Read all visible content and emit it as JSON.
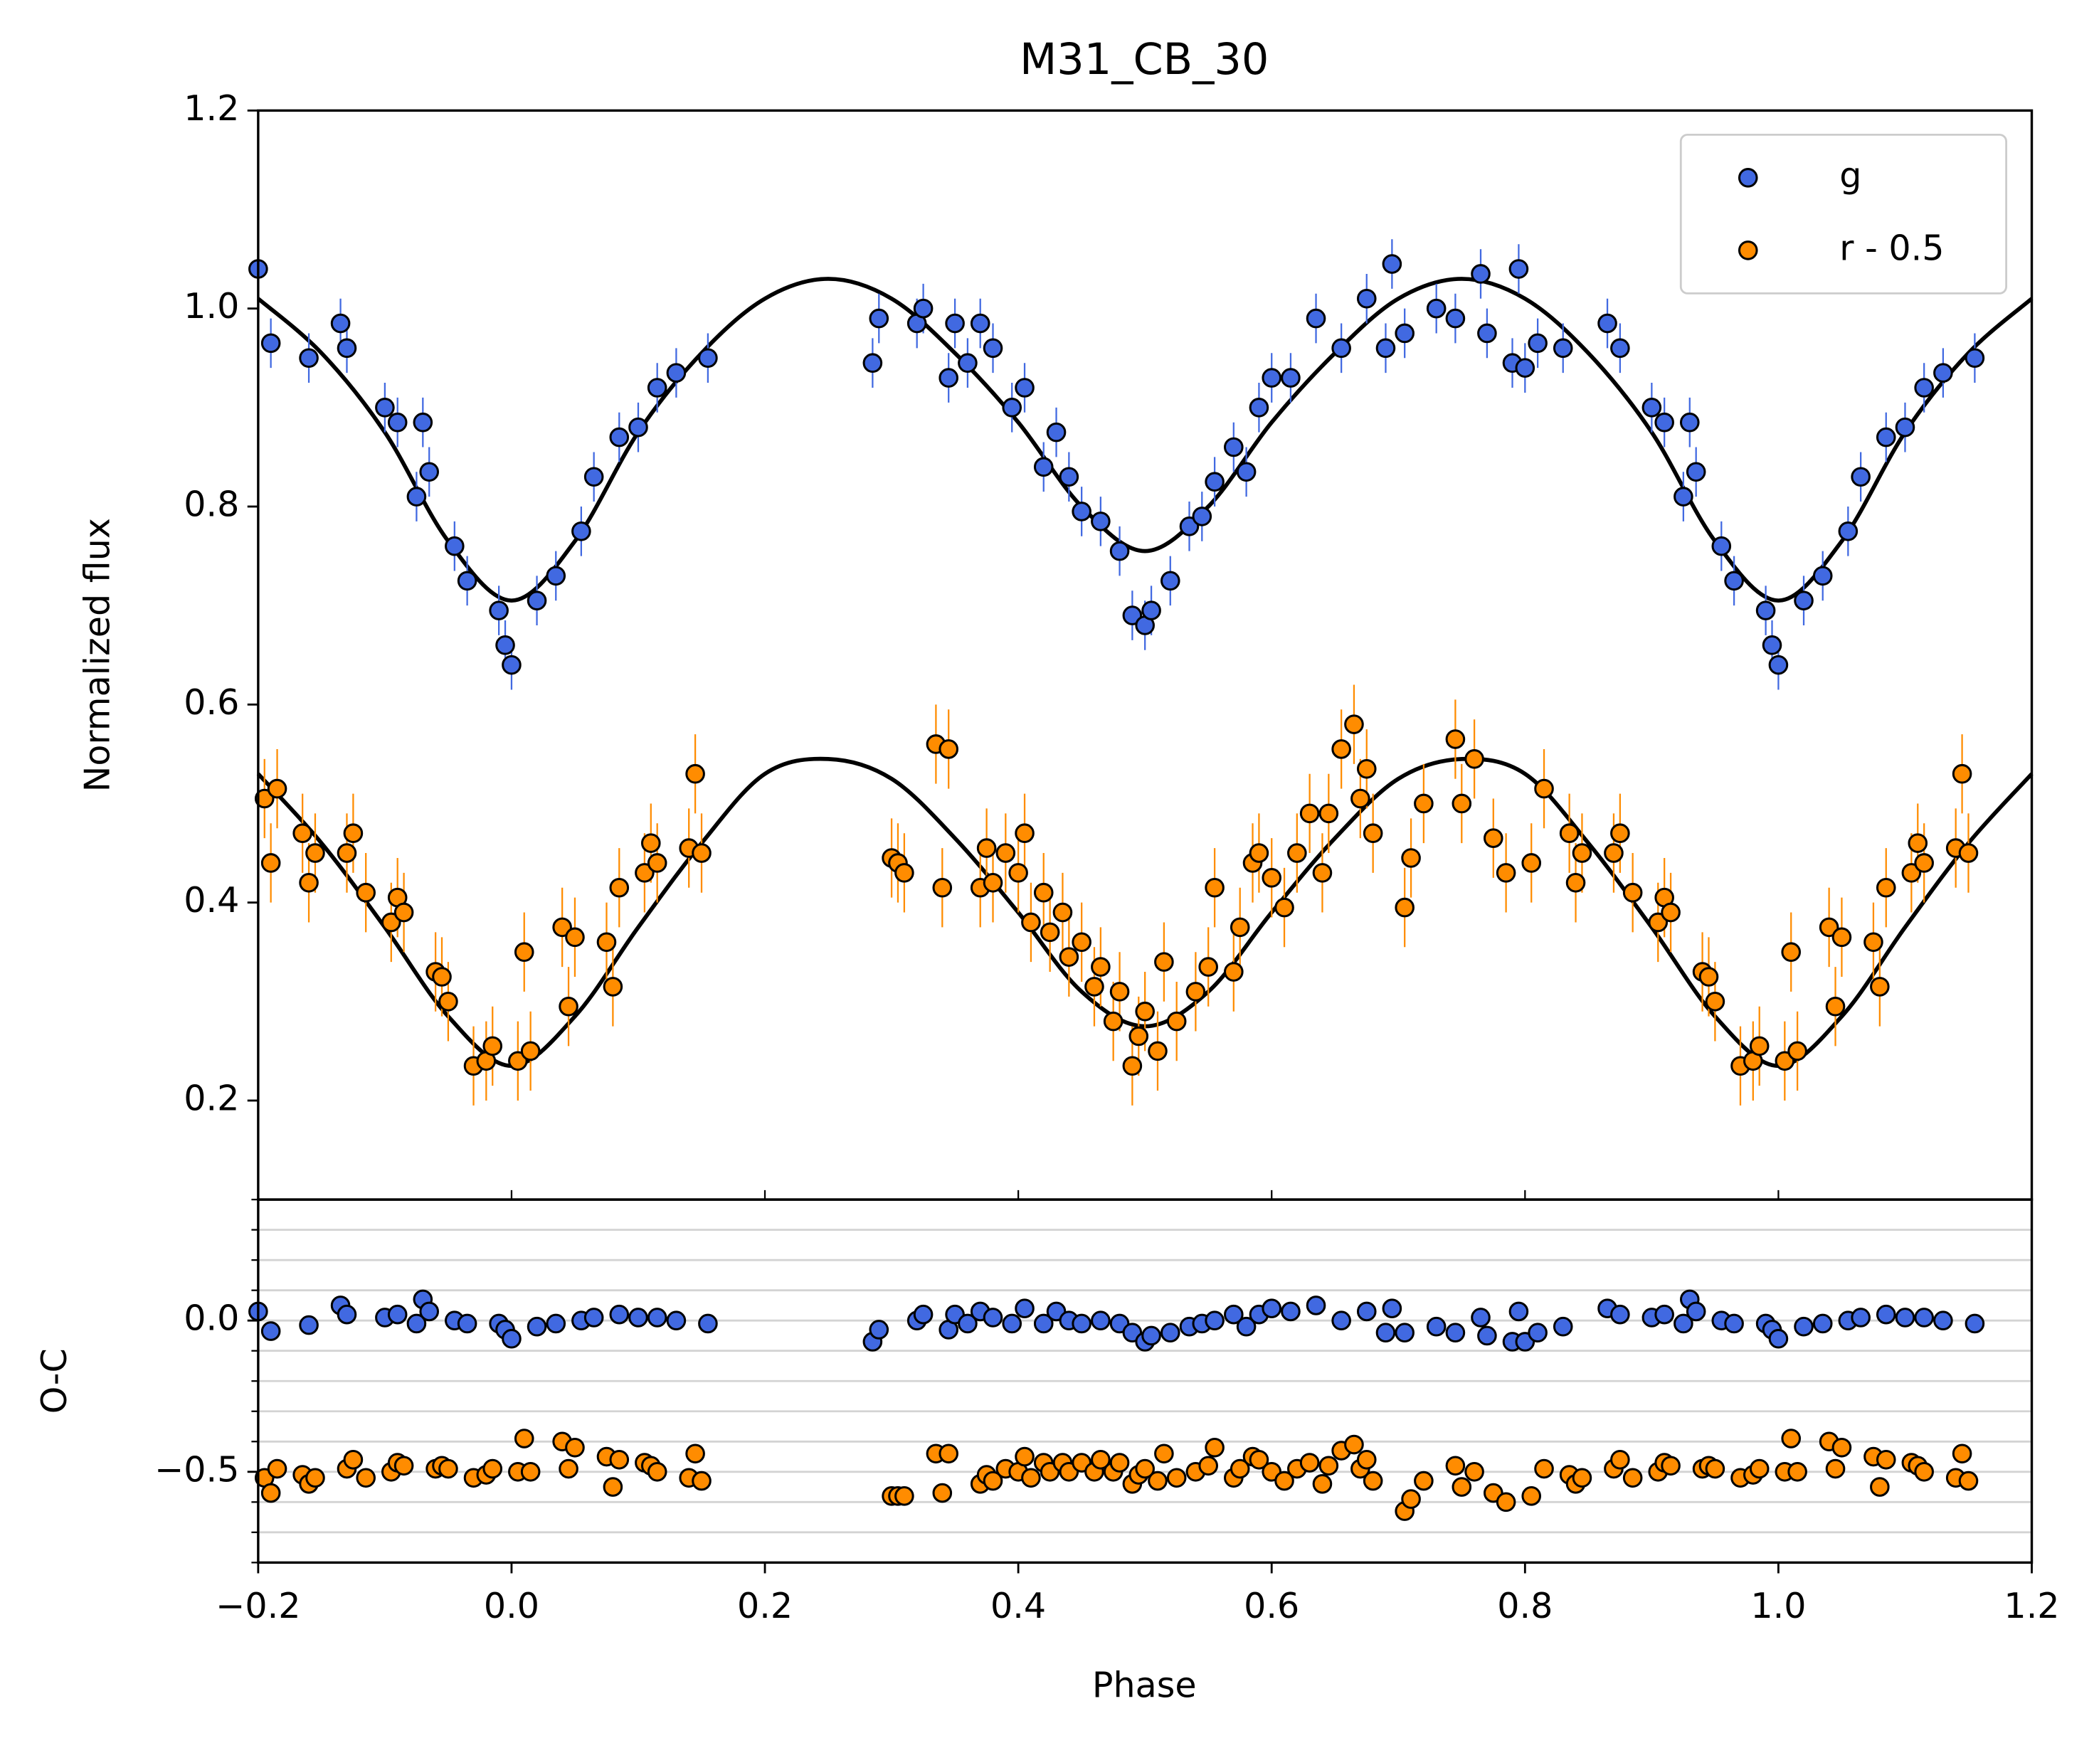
{
  "chart_data": [
    {
      "type": "scatter",
      "title": "M31_CB_30",
      "ylabel": "Normalized flux",
      "xlim": [
        -0.2,
        1.2
      ],
      "ylim": [
        0.1,
        1.2
      ],
      "yticks": [
        0.2,
        0.4,
        0.6,
        0.8,
        {
          "value": 1.0,
          "label": "1.0"
        },
        1.2
      ],
      "legend": "upper right",
      "series": [
        {
          "name": "g",
          "color": "#4169e1",
          "yerr": 0.025,
          "x": [
            -0.2,
            -0.19,
            -0.16,
            -0.135,
            -0.13,
            -0.1,
            -0.09,
            -0.075,
            -0.07,
            -0.065,
            -0.045,
            -0.035,
            -0.01,
            -0.005,
            0.0,
            0.02,
            0.035,
            0.055,
            0.065,
            0.085,
            0.1,
            0.115,
            0.13,
            0.155,
            0.285,
            0.29,
            0.32,
            0.325,
            0.345,
            0.35,
            0.36,
            0.37,
            0.38,
            0.395,
            0.405,
            0.42,
            0.43,
            0.44,
            0.45,
            0.465,
            0.48,
            0.49,
            0.5,
            0.505,
            0.52,
            0.535,
            0.545,
            0.555,
            0.57,
            0.58,
            0.59,
            0.6,
            0.615,
            0.635,
            0.655,
            0.675,
            0.69,
            0.695,
            0.705,
            0.73,
            0.745,
            0.765,
            0.77,
            0.79,
            0.795,
            0.8,
            0.81,
            0.83,
            0.865,
            0.875,
            0.9,
            0.91,
            0.925,
            0.93,
            0.935,
            0.955,
            0.965,
            0.99,
            0.995,
            1.0,
            1.02,
            1.035,
            1.055,
            1.065,
            1.085,
            1.1,
            1.115,
            1.13,
            1.155
          ],
          "values": [
            1.04,
            0.965,
            0.95,
            0.985,
            0.96,
            0.9,
            0.885,
            0.81,
            0.885,
            0.835,
            0.76,
            0.725,
            0.695,
            0.66,
            0.64,
            0.705,
            0.73,
            0.775,
            0.83,
            0.87,
            0.88,
            0.92,
            0.935,
            0.95,
            0.945,
            0.99,
            0.985,
            1.0,
            0.93,
            0.985,
            0.945,
            0.985,
            0.96,
            0.9,
            0.92,
            0.84,
            0.875,
            0.83,
            0.795,
            0.785,
            0.755,
            0.69,
            0.68,
            0.695,
            0.725,
            0.78,
            0.79,
            0.825,
            0.86,
            0.835,
            0.9,
            0.93,
            0.93,
            0.99,
            0.96,
            1.01,
            0.96,
            1.045,
            0.975,
            1.0,
            0.99,
            1.035,
            0.975,
            0.945,
            1.04,
            0.94,
            0.965,
            0.96,
            0.985,
            0.96,
            0.9,
            0.885,
            0.81,
            0.885,
            0.835,
            0.76,
            0.725,
            0.695,
            0.66,
            0.64,
            0.705,
            0.73,
            0.775,
            0.83,
            0.87,
            0.88,
            0.92,
            0.935,
            0.95
          ]
        },
        {
          "name": "r - 0.5",
          "color": "#ff8c00",
          "yerr": 0.04,
          "x": [
            -0.195,
            -0.19,
            -0.185,
            -0.165,
            -0.16,
            -0.155,
            -0.13,
            -0.125,
            -0.115,
            -0.095,
            -0.09,
            -0.085,
            -0.06,
            -0.055,
            -0.05,
            -0.03,
            -0.02,
            -0.015,
            0.005,
            0.01,
            0.015,
            0.04,
            0.045,
            0.05,
            0.075,
            0.08,
            0.085,
            0.105,
            0.11,
            0.115,
            0.14,
            0.145,
            0.15,
            0.3,
            0.305,
            0.31,
            0.335,
            0.34,
            0.345,
            0.37,
            0.375,
            0.38,
            0.39,
            0.4,
            0.405,
            0.41,
            0.42,
            0.425,
            0.435,
            0.44,
            0.45,
            0.46,
            0.465,
            0.475,
            0.48,
            0.49,
            0.495,
            0.5,
            0.51,
            0.515,
            0.525,
            0.54,
            0.55,
            0.555,
            0.57,
            0.575,
            0.585,
            0.59,
            0.6,
            0.61,
            0.62,
            0.63,
            0.64,
            0.645,
            0.655,
            0.665,
            0.67,
            0.675,
            0.68,
            0.705,
            0.71,
            0.72,
            0.745,
            0.75,
            0.76,
            0.775,
            0.785,
            0.805,
            0.815,
            0.835,
            0.84,
            0.845,
            0.87,
            0.875,
            0.885,
            0.905,
            0.91,
            0.915,
            0.94,
            0.945,
            0.95,
            0.97,
            0.98,
            0.985,
            1.005,
            1.01,
            1.015,
            1.04,
            1.045,
            1.05,
            1.075,
            1.08,
            1.085,
            1.105,
            1.11,
            1.115,
            1.14,
            1.145,
            1.15
          ],
          "values": [
            0.505,
            0.44,
            0.515,
            0.47,
            0.42,
            0.45,
            0.45,
            0.47,
            0.41,
            0.38,
            0.405,
            0.39,
            0.33,
            0.325,
            0.3,
            0.235,
            0.24,
            0.255,
            0.24,
            0.35,
            0.25,
            0.375,
            0.295,
            0.365,
            0.36,
            0.315,
            0.415,
            0.43,
            0.46,
            0.44,
            0.455,
            0.53,
            0.45,
            0.445,
            0.44,
            0.43,
            0.56,
            0.415,
            0.555,
            0.415,
            0.455,
            0.42,
            0.45,
            0.43,
            0.47,
            0.38,
            0.41,
            0.37,
            0.39,
            0.345,
            0.36,
            0.315,
            0.335,
            0.28,
            0.31,
            0.235,
            0.265,
            0.29,
            0.25,
            0.34,
            0.28,
            0.31,
            0.335,
            0.415,
            0.33,
            0.375,
            0.44,
            0.45,
            0.425,
            0.395,
            0.45,
            0.49,
            0.43,
            0.49,
            0.555,
            0.58,
            0.505,
            0.535,
            0.47,
            0.395,
            0.445,
            0.5,
            0.565,
            0.5,
            0.545,
            0.465,
            0.43,
            0.44,
            0.515,
            0.47,
            0.42,
            0.45,
            0.45,
            0.47,
            0.41,
            0.38,
            0.405,
            0.39,
            0.33,
            0.325,
            0.3,
            0.235,
            0.24,
            0.255,
            0.24,
            0.35,
            0.25,
            0.375,
            0.295,
            0.365,
            0.36,
            0.315,
            0.415,
            0.43,
            0.46,
            0.44,
            0.455,
            0.53,
            0.45
          ]
        }
      ],
      "model_color": "#000000",
      "model_x": [
        -0.2,
        -0.15,
        -0.1,
        -0.05,
        0.0,
        0.05,
        0.1,
        0.15,
        0.2,
        0.25,
        0.3,
        0.35,
        0.4,
        0.45,
        0.5,
        0.55,
        0.6,
        0.65,
        0.7,
        0.75,
        0.8,
        0.85,
        0.9,
        0.95,
        1.0,
        1.05,
        1.1,
        1.15,
        1.2
      ],
      "model": [
        {
          "values": [
            1.01,
            0.955,
            0.875,
            0.765,
            0.705,
            0.765,
            0.875,
            0.955,
            1.01,
            1.03,
            1.01,
            0.955,
            0.885,
            0.8,
            0.755,
            0.8,
            0.885,
            0.955,
            1.01,
            1.03,
            1.01,
            0.955,
            0.875,
            0.765,
            0.705,
            0.765,
            0.875,
            0.955,
            1.01
          ]
        },
        {
          "values": [
            0.53,
            0.46,
            0.375,
            0.285,
            0.235,
            0.285,
            0.375,
            0.46,
            0.53,
            0.545,
            0.525,
            0.465,
            0.39,
            0.31,
            0.275,
            0.31,
            0.39,
            0.465,
            0.525,
            0.545,
            0.53,
            0.46,
            0.375,
            0.285,
            0.235,
            0.285,
            0.375,
            0.46,
            0.53
          ]
        }
      ]
    },
    {
      "type": "scatter",
      "ylabel": "O-C",
      "xlabel": "Phase",
      "xlim": [
        -0.2,
        1.2
      ],
      "ylim": [
        -0.8,
        0.4
      ],
      "xticks": [
        {
          "value": -0.2,
          "label": "−0.2"
        },
        {
          "value": 0.0,
          "label": "0.0"
        },
        0.2,
        0.4,
        0.6,
        0.8,
        {
          "value": 1.0,
          "label": "1.0"
        },
        1.2
      ],
      "yticks": [
        {
          "value": 0.0,
          "label": "0.0"
        },
        {
          "value": -0.5,
          "label": "−0.5"
        }
      ],
      "grid_yticks": [
        -0.8,
        -0.7,
        -0.6,
        -0.5,
        -0.4,
        -0.3,
        -0.2,
        -0.1,
        0.0,
        0.1,
        0.2,
        0.3,
        0.4
      ],
      "series": [
        {
          "values": [
            0.03,
            -0.035,
            -0.015,
            0.05,
            0.02,
            0.01,
            0.02,
            -0.01,
            0.07,
            0.03,
            0.0,
            -0.01,
            -0.01,
            -0.03,
            -0.06,
            -0.02,
            -0.01,
            0.0,
            0.01,
            0.02,
            0.01,
            0.01,
            0.0,
            -0.01,
            -0.07,
            -0.03,
            0.0,
            0.02,
            -0.03,
            0.02,
            -0.01,
            0.03,
            0.01,
            -0.01,
            0.04,
            -0.01,
            0.03,
            0.0,
            -0.01,
            0.0,
            -0.01,
            -0.04,
            -0.07,
            -0.05,
            -0.04,
            -0.02,
            -0.01,
            0.0,
            0.02,
            -0.02,
            0.02,
            0.04,
            0.03,
            0.05,
            0.0,
            0.03,
            -0.04,
            0.04,
            -0.04,
            -0.02,
            -0.04,
            0.01,
            -0.05,
            -0.07,
            0.03,
            -0.07,
            -0.04,
            -0.02,
            0.04,
            0.02,
            0.01,
            0.02,
            -0.01,
            0.07,
            0.03,
            0.0,
            -0.01,
            -0.01,
            -0.03,
            -0.06,
            -0.02,
            -0.01,
            0.0,
            0.01,
            0.02,
            0.01,
            0.01,
            0.0,
            -0.01
          ]
        },
        {
          "values": [
            -0.52,
            -0.57,
            -0.49,
            -0.51,
            -0.54,
            -0.52,
            -0.49,
            -0.46,
            -0.52,
            -0.5,
            -0.47,
            -0.48,
            -0.49,
            -0.48,
            -0.49,
            -0.52,
            -0.51,
            -0.49,
            -0.5,
            -0.39,
            -0.5,
            -0.4,
            -0.49,
            -0.42,
            -0.45,
            -0.55,
            -0.46,
            -0.47,
            -0.48,
            -0.5,
            -0.52,
            -0.44,
            -0.53,
            -0.58,
            -0.58,
            -0.58,
            -0.44,
            -0.57,
            -0.44,
            -0.54,
            -0.51,
            -0.53,
            -0.49,
            -0.5,
            -0.45,
            -0.52,
            -0.47,
            -0.5,
            -0.47,
            -0.5,
            -0.47,
            -0.5,
            -0.46,
            -0.5,
            -0.47,
            -0.54,
            -0.51,
            -0.49,
            -0.53,
            -0.44,
            -0.52,
            -0.5,
            -0.48,
            -0.42,
            -0.52,
            -0.49,
            -0.45,
            -0.46,
            -0.5,
            -0.53,
            -0.49,
            -0.47,
            -0.54,
            -0.48,
            -0.43,
            -0.41,
            -0.49,
            -0.46,
            -0.53,
            -0.63,
            -0.59,
            -0.53,
            -0.48,
            -0.55,
            -0.5,
            -0.57,
            -0.6,
            -0.58,
            -0.49,
            -0.51,
            -0.54,
            -0.52,
            -0.49,
            -0.46,
            -0.52,
            -0.5,
            -0.47,
            -0.48,
            -0.49,
            -0.48,
            -0.49,
            -0.52,
            -0.51,
            -0.49,
            -0.5,
            -0.39,
            -0.5,
            -0.4,
            -0.49,
            -0.42,
            -0.45,
            -0.55,
            -0.46,
            -0.47,
            -0.48,
            -0.5,
            -0.52,
            -0.44,
            -0.53
          ]
        }
      ]
    }
  ]
}
